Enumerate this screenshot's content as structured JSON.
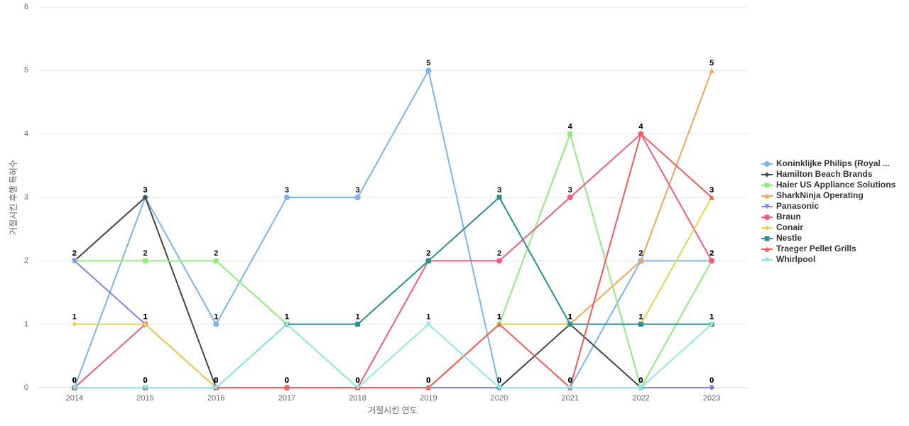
{
  "chart_data": {
    "type": "line",
    "x_label": "거절시킨 연도",
    "y_label": "거절시킨 후행 특허수",
    "categories": [
      "2014",
      "2015",
      "2016",
      "2017",
      "2018",
      "2019",
      "2020",
      "2021",
      "2022",
      "2023"
    ],
    "ylim": [
      0,
      6
    ],
    "yticks": [
      0,
      1,
      2,
      3,
      4,
      5,
      6
    ],
    "grid": true,
    "legend": "right",
    "series": [
      {
        "name": "Koninklijke Philips (Royal ...",
        "color": "#7cb5ec",
        "values": [
          0,
          3,
          1,
          3,
          3,
          5,
          0,
          0,
          2,
          2
        ]
      },
      {
        "name": "Hamilton Beach Brands",
        "color": "#434348",
        "values": [
          2,
          3,
          0,
          0,
          0,
          0,
          0,
          1,
          0,
          0
        ]
      },
      {
        "name": "Haier US Appliance Solutions",
        "color": "#90ed7d",
        "values": [
          2,
          2,
          2,
          1,
          0,
          0,
          1,
          4,
          0,
          2
        ]
      },
      {
        "name": "SharkNinja Operating",
        "color": "#f7a35c",
        "values": [
          0,
          0,
          0,
          0,
          0,
          0,
          1,
          1,
          2,
          5
        ]
      },
      {
        "name": "Panasonic",
        "color": "#8085e9",
        "values": [
          2,
          1,
          0,
          0,
          0,
          0,
          0,
          0,
          0,
          0
        ]
      },
      {
        "name": "Braun",
        "color": "#f15c80",
        "values": [
          0,
          1,
          0,
          0,
          0,
          2,
          2,
          3,
          4,
          2
        ]
      },
      {
        "name": "Conair",
        "color": "#e4d354",
        "values": [
          1,
          1,
          0,
          0,
          0,
          0,
          1,
          1,
          1,
          3
        ]
      },
      {
        "name": "Nestle",
        "color": "#2b908f",
        "values": [
          0,
          0,
          0,
          1,
          1,
          2,
          3,
          1,
          1,
          1
        ]
      },
      {
        "name": "Traeger Pellet Grills",
        "color": "#f45b5b",
        "values": [
          0,
          0,
          0,
          0,
          0,
          0,
          1,
          0,
          4,
          3
        ]
      },
      {
        "name": "Whirlpool",
        "color": "#91e8e1",
        "values": [
          0,
          0,
          0,
          1,
          0,
          1,
          0,
          0,
          0,
          1
        ]
      }
    ]
  }
}
